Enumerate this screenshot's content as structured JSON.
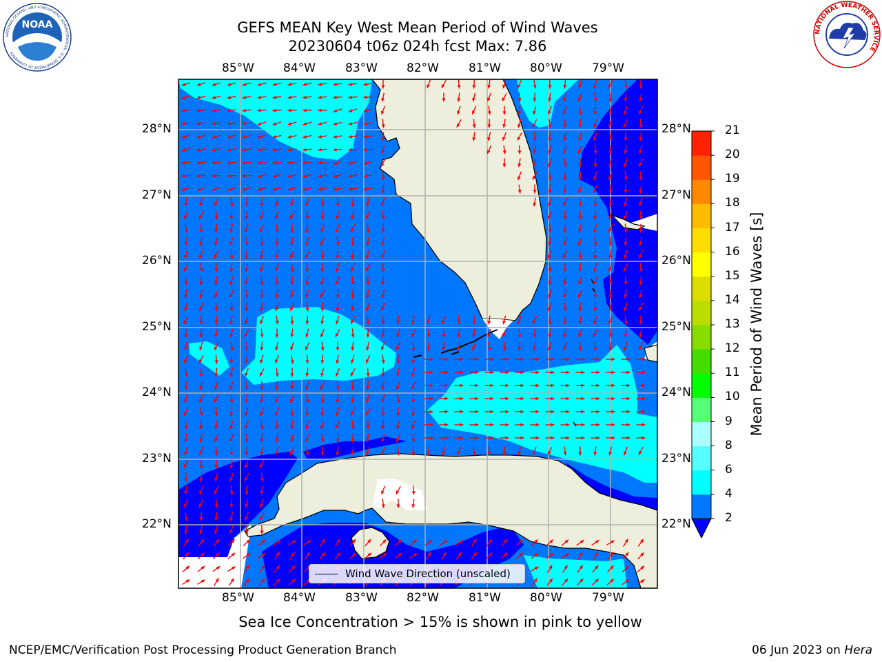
{
  "header": {
    "title_line1": "GEFS MEAN Key West Mean Period of Wind Waves",
    "title_line2": "20230604 t06z 024h fcst   Max: 7.86"
  },
  "logos": {
    "noaa_text": "NOAA",
    "noaa_ring_text": "NATIONAL OCEANIC AND ATMOSPHERIC ADMINISTRATION · U.S. DEPARTMENT OF COMMERCE",
    "nws_ring_text": "NATIONAL WEATHER SERVICE"
  },
  "map": {
    "lon_labels": [
      "85°W",
      "84°W",
      "83°W",
      "82°W",
      "81°W",
      "80°W",
      "79°W"
    ],
    "lat_labels": [
      "28°N",
      "27°N",
      "26°N",
      "25°N",
      "24°N",
      "23°N",
      "22°N"
    ],
    "lon_extent": [
      -86.0,
      -78.25
    ],
    "lat_extent": [
      21.0,
      28.75
    ],
    "colors": {
      "land": "#eeeedc",
      "ocean_2_4": "#0077ff",
      "ocean_below_2": "#0000ff",
      "ocean_4_6": "#00ffff",
      "grid": "#b0b0b0",
      "arrow": "#ff0000"
    },
    "legend_label": "Wind Wave Direction (unscaled)"
  },
  "colorbar": {
    "label": "Mean Period of Wind Waves [s]",
    "ticks": [
      "2",
      "4",
      "6",
      "8",
      "9",
      "10",
      "11",
      "12",
      "13",
      "14",
      "15",
      "16",
      "17",
      "18",
      "19",
      "20",
      "21"
    ],
    "colors": [
      "#0077ff",
      "#00ffff",
      "#55ffff",
      "#aaffff",
      "#55ff77",
      "#00ff00",
      "#44dd00",
      "#88dd00",
      "#bbdd00",
      "#dddd00",
      "#ffff00",
      "#ffdd00",
      "#ffbb00",
      "#ff8800",
      "#ff5500",
      "#ff2200"
    ],
    "extend_low_color": "#0000ff"
  },
  "caption": "Sea Ice Concentration > 15% is shown in pink to yellow",
  "footer": {
    "left": "NCEP/EMC/Verification Post Processing Product Generation Branch",
    "right_prefix": "06 Jun 2023 on ",
    "right_host": "Hera"
  }
}
